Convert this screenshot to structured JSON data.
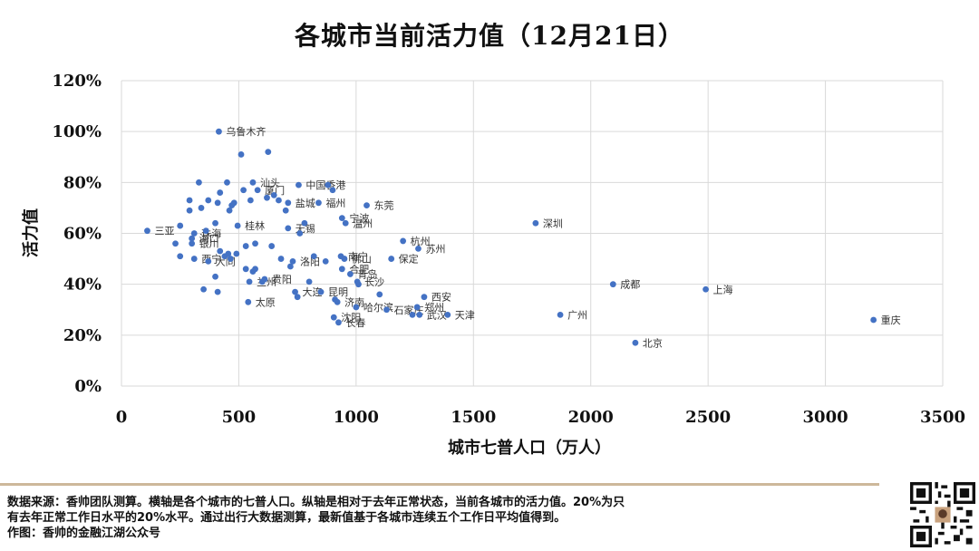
{
  "chart_data": {
    "type": "scatter",
    "title": "各城市当前活力值（12月21日）",
    "xlabel": "城市七普人口（万人）",
    "ylabel": "活力值",
    "xlim": [
      0,
      3500
    ],
    "ylim": [
      0,
      1.2
    ],
    "x_ticks": [
      "0",
      "500",
      "1000",
      "1500",
      "2000",
      "2500",
      "3000",
      "3500"
    ],
    "y_ticks": [
      "0%",
      "20%",
      "40%",
      "60%",
      "80%",
      "100%",
      "120%"
    ],
    "grid": true,
    "point_color": "#4472c4",
    "points": [
      {
        "x": 110,
        "y": 0.61,
        "label": "三亚"
      },
      {
        "x": 250,
        "y": 0.63,
        "label": ""
      },
      {
        "x": 290,
        "y": 0.73,
        "label": ""
      },
      {
        "x": 290,
        "y": 0.69,
        "label": ""
      },
      {
        "x": 310,
        "y": 0.6,
        "label": "珠海"
      },
      {
        "x": 330,
        "y": 0.8,
        "label": ""
      },
      {
        "x": 300,
        "y": 0.58,
        "label": "海口"
      },
      {
        "x": 300,
        "y": 0.56,
        "label": "银川"
      },
      {
        "x": 230,
        "y": 0.56,
        "label": ""
      },
      {
        "x": 250,
        "y": 0.51,
        "label": ""
      },
      {
        "x": 310,
        "y": 0.5,
        "label": "西宁"
      },
      {
        "x": 340,
        "y": 0.7,
        "label": ""
      },
      {
        "x": 360,
        "y": 0.61,
        "label": ""
      },
      {
        "x": 370,
        "y": 0.49,
        "label": "大同"
      },
      {
        "x": 370,
        "y": 0.73,
        "label": ""
      },
      {
        "x": 400,
        "y": 0.64,
        "label": ""
      },
      {
        "x": 410,
        "y": 0.72,
        "label": ""
      },
      {
        "x": 420,
        "y": 0.76,
        "label": ""
      },
      {
        "x": 415,
        "y": 1.0,
        "label": "乌鲁木齐"
      },
      {
        "x": 400,
        "y": 0.43,
        "label": ""
      },
      {
        "x": 350,
        "y": 0.38,
        "label": ""
      },
      {
        "x": 410,
        "y": 0.37,
        "label": ""
      },
      {
        "x": 420,
        "y": 0.53,
        "label": ""
      },
      {
        "x": 440,
        "y": 0.51,
        "label": ""
      },
      {
        "x": 455,
        "y": 0.52,
        "label": ""
      },
      {
        "x": 465,
        "y": 0.5,
        "label": ""
      },
      {
        "x": 450,
        "y": 0.8,
        "label": ""
      },
      {
        "x": 460,
        "y": 0.69,
        "label": ""
      },
      {
        "x": 470,
        "y": 0.71,
        "label": ""
      },
      {
        "x": 480,
        "y": 0.72,
        "label": ""
      },
      {
        "x": 490,
        "y": 0.52,
        "label": ""
      },
      {
        "x": 495,
        "y": 0.63,
        "label": "桂林"
      },
      {
        "x": 510,
        "y": 0.91,
        "label": ""
      },
      {
        "x": 520,
        "y": 0.77,
        "label": ""
      },
      {
        "x": 530,
        "y": 0.55,
        "label": ""
      },
      {
        "x": 530,
        "y": 0.46,
        "label": ""
      },
      {
        "x": 540,
        "y": 0.33,
        "label": "太原"
      },
      {
        "x": 545,
        "y": 0.41,
        "label": "兰州"
      },
      {
        "x": 550,
        "y": 0.73,
        "label": ""
      },
      {
        "x": 560,
        "y": 0.8,
        "label": "汕头"
      },
      {
        "x": 560,
        "y": 0.45,
        "label": ""
      },
      {
        "x": 570,
        "y": 0.56,
        "label": ""
      },
      {
        "x": 570,
        "y": 0.46,
        "label": ""
      },
      {
        "x": 580,
        "y": 0.77,
        "label": "厦门"
      },
      {
        "x": 600,
        "y": 0.41,
        "label": ""
      },
      {
        "x": 610,
        "y": 0.42,
        "label": "贵阳"
      },
      {
        "x": 620,
        "y": 0.74,
        "label": ""
      },
      {
        "x": 625,
        "y": 0.92,
        "label": ""
      },
      {
        "x": 640,
        "y": 0.55,
        "label": ""
      },
      {
        "x": 650,
        "y": 0.75,
        "label": ""
      },
      {
        "x": 670,
        "y": 0.73,
        "label": ""
      },
      {
        "x": 680,
        "y": 0.5,
        "label": ""
      },
      {
        "x": 700,
        "y": 0.69,
        "label": ""
      },
      {
        "x": 710,
        "y": 0.62,
        "label": "无锡"
      },
      {
        "x": 710,
        "y": 0.72,
        "label": "盐城"
      },
      {
        "x": 720,
        "y": 0.47,
        "label": ""
      },
      {
        "x": 730,
        "y": 0.49,
        "label": "洛阳"
      },
      {
        "x": 740,
        "y": 0.37,
        "label": "大连"
      },
      {
        "x": 750,
        "y": 0.35,
        "label": ""
      },
      {
        "x": 755,
        "y": 0.79,
        "label": "中国香港"
      },
      {
        "x": 760,
        "y": 0.6,
        "label": ""
      },
      {
        "x": 780,
        "y": 0.64,
        "label": ""
      },
      {
        "x": 800,
        "y": 0.41,
        "label": ""
      },
      {
        "x": 820,
        "y": 0.51,
        "label": ""
      },
      {
        "x": 840,
        "y": 0.72,
        "label": "福州"
      },
      {
        "x": 850,
        "y": 0.37,
        "label": "昆明"
      },
      {
        "x": 870,
        "y": 0.49,
        "label": ""
      },
      {
        "x": 880,
        "y": 0.79,
        "label": ""
      },
      {
        "x": 900,
        "y": 0.77,
        "label": ""
      },
      {
        "x": 905,
        "y": 0.27,
        "label": "沈阳"
      },
      {
        "x": 910,
        "y": 0.34,
        "label": ""
      },
      {
        "x": 920,
        "y": 0.33,
        "label": "济南"
      },
      {
        "x": 925,
        "y": 0.25,
        "label": "长春"
      },
      {
        "x": 935,
        "y": 0.51,
        "label": "南宁"
      },
      {
        "x": 940,
        "y": 0.46,
        "label": "合肥"
      },
      {
        "x": 940,
        "y": 0.66,
        "label": "宁波"
      },
      {
        "x": 950,
        "y": 0.5,
        "label": "佛山"
      },
      {
        "x": 955,
        "y": 0.64,
        "label": "温州"
      },
      {
        "x": 975,
        "y": 0.44,
        "label": "青岛"
      },
      {
        "x": 1000,
        "y": 0.31,
        "label": "哈尔滨"
      },
      {
        "x": 1005,
        "y": 0.41,
        "label": "长沙"
      },
      {
        "x": 1010,
        "y": 0.4,
        "label": ""
      },
      {
        "x": 1045,
        "y": 0.71,
        "label": "东莞"
      },
      {
        "x": 1100,
        "y": 0.36,
        "label": ""
      },
      {
        "x": 1130,
        "y": 0.3,
        "label": "石家庄"
      },
      {
        "x": 1150,
        "y": 0.5,
        "label": "保定"
      },
      {
        "x": 1200,
        "y": 0.57,
        "label": "杭州"
      },
      {
        "x": 1240,
        "y": 0.28,
        "label": ""
      },
      {
        "x": 1260,
        "y": 0.31,
        "label": "郑州"
      },
      {
        "x": 1265,
        "y": 0.54,
        "label": "苏州"
      },
      {
        "x": 1270,
        "y": 0.28,
        "label": "武汉"
      },
      {
        "x": 1290,
        "y": 0.35,
        "label": "西安"
      },
      {
        "x": 1390,
        "y": 0.28,
        "label": "天津"
      },
      {
        "x": 1765,
        "y": 0.64,
        "label": "深圳"
      },
      {
        "x": 1870,
        "y": 0.28,
        "label": "广州"
      },
      {
        "x": 2095,
        "y": 0.4,
        "label": "成都"
      },
      {
        "x": 2190,
        "y": 0.17,
        "label": "北京"
      },
      {
        "x": 2490,
        "y": 0.38,
        "label": "上海"
      },
      {
        "x": 3205,
        "y": 0.26,
        "label": "重庆"
      }
    ]
  },
  "footer": {
    "line1": "数据来源：香帅团队测算。横轴是各个城市的七普人口。纵轴是相对于去年正常状态，当前各城市的活力值。20%为只",
    "line2": "有去年正常工作日水平的20%水平。通过出行大数据测算，最新值基于各城市连续五个工作日平均值得到。",
    "line3": "作图：香帅的金融江湖公众号"
  },
  "colors": {
    "divider": "#cdb89a",
    "grid": "#d9d9d9"
  }
}
